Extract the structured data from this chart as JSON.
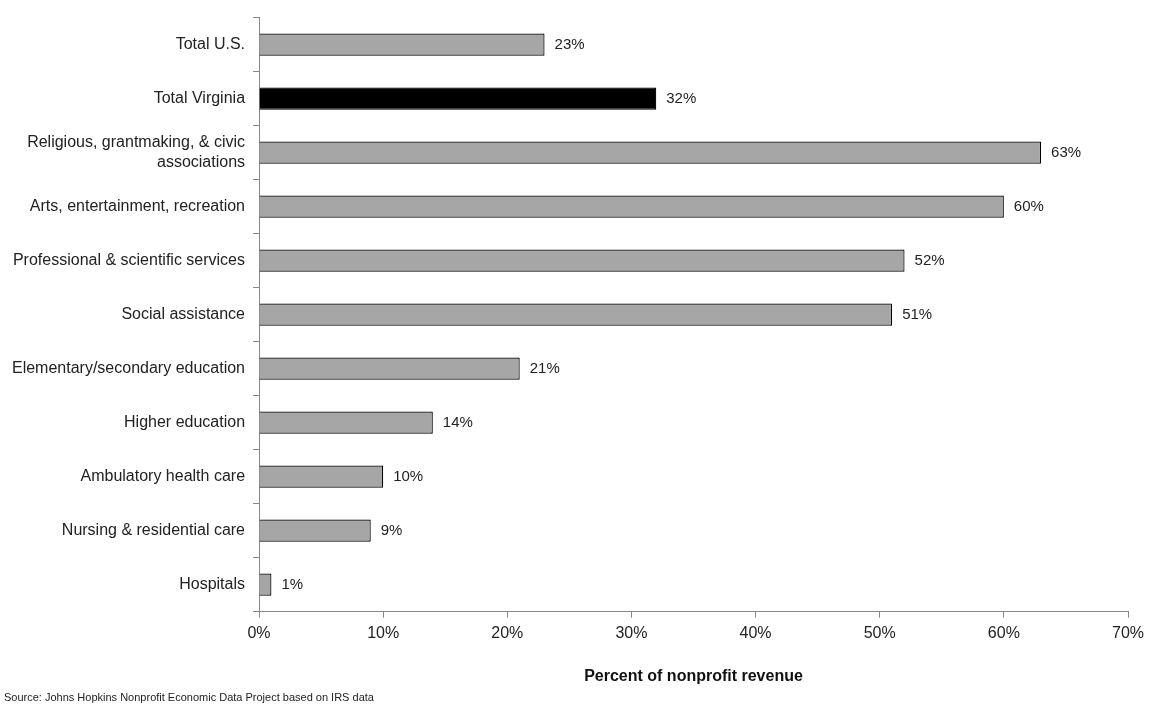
{
  "chart_data": {
    "type": "bar",
    "orientation": "horizontal",
    "categories": [
      "Total U.S.",
      "Total Virginia",
      "Religious, grantmaking, & civic associations",
      "Arts, entertainment, recreation",
      "Professional & scientific services",
      "Social assistance",
      "Elementary/secondary education",
      "Higher education",
      "Ambulatory health care",
      "Nursing & residential care",
      "Hospitals"
    ],
    "values": [
      23,
      32,
      63,
      60,
      52,
      51,
      21,
      14,
      10,
      9,
      1
    ],
    "colors": [
      "#a6a6a6",
      "#000000",
      "#a6a6a6",
      "#a6a6a6",
      "#a6a6a6",
      "#a6a6a6",
      "#a6a6a6",
      "#a6a6a6",
      "#a6a6a6",
      "#a6a6a6",
      "#a6a6a6"
    ],
    "value_labels": [
      "23%",
      "32%",
      "63%",
      "60%",
      "52%",
      "51%",
      "21%",
      "14%",
      "10%",
      "9%",
      "1%"
    ],
    "xlim": [
      0,
      70
    ],
    "xticks": [
      {
        "value": 0,
        "label": "0%"
      },
      {
        "value": 10,
        "label": "10%"
      },
      {
        "value": 20,
        "label": "20%"
      },
      {
        "value": 30,
        "label": "30%"
      },
      {
        "value": 40,
        "label": "40%"
      },
      {
        "value": 50,
        "label": "50%"
      },
      {
        "value": 60,
        "label": "60%"
      },
      {
        "value": 70,
        "label": "70%"
      }
    ],
    "xlabel": "Percent of nonprofit revenue",
    "annotations": [
      "Source: Johns Hopkins Nonprofit Economic Data Project based on IRS data"
    ],
    "grid": false,
    "legend": false
  }
}
